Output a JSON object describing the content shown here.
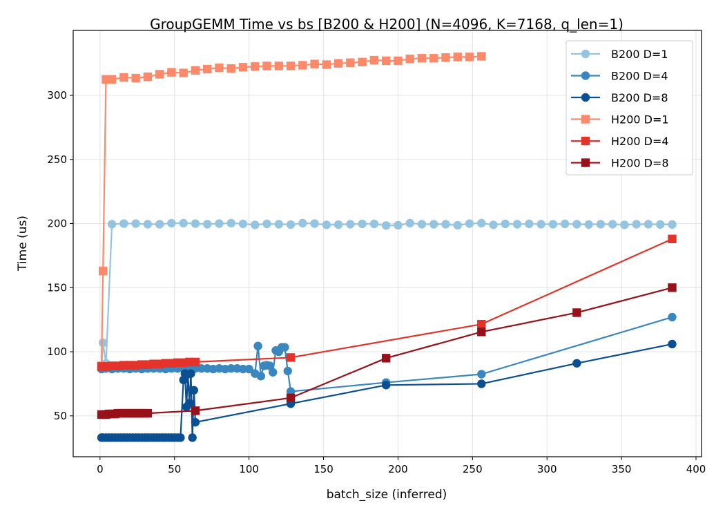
{
  "chart_data": {
    "type": "line",
    "title": "GroupGEMM Time vs bs [B200 & H200] (N=4096, K=7168, q_len=1)",
    "xlabel": "batch_size (inferred)",
    "ylabel": "Time (us)",
    "xlim": [
      -18,
      403.7
    ],
    "ylim": [
      18.1,
      350.7
    ],
    "xticks": [
      0,
      50,
      100,
      150,
      200,
      250,
      300,
      350,
      400
    ],
    "yticks": [
      50,
      100,
      150,
      200,
      250,
      300
    ],
    "grid": true,
    "legend_position": "top-right",
    "series": [
      {
        "name": "B200 D=1",
        "color": "#94c4df",
        "marker": "circle",
        "x": [
          1,
          2,
          4,
          8,
          16,
          24,
          32,
          40,
          48,
          56,
          64,
          72,
          80,
          88,
          96,
          104,
          112,
          120,
          128,
          136,
          144,
          152,
          160,
          168,
          176,
          184,
          192,
          200,
          208,
          216,
          224,
          232,
          240,
          248,
          256,
          264,
          272,
          280,
          288,
          296,
          304,
          312,
          320,
          328,
          336,
          344,
          352,
          360,
          368,
          376,
          384
        ],
        "y": [
          87,
          107,
          91,
          199.5,
          200,
          200,
          199.5,
          199.5,
          200.3,
          200.3,
          200,
          199.5,
          200,
          200.3,
          199.8,
          199,
          199.8,
          199.5,
          199.2,
          200.3,
          200,
          199,
          199.2,
          199.5,
          199.8,
          199.8,
          198.5,
          198.7,
          200.3,
          199.5,
          199.5,
          199.5,
          198.7,
          200,
          200.3,
          199,
          199.8,
          199.5,
          199.8,
          199.5,
          199.5,
          199.8,
          199.5,
          199.3,
          199.5,
          199.5,
          199,
          199.5,
          199.5,
          199.3,
          199.3
        ]
      },
      {
        "name": "B200 D=4",
        "color": "#3a87c0",
        "marker": "circle",
        "x": [
          1,
          4,
          8,
          12,
          16,
          20,
          24,
          28,
          32,
          36,
          40,
          44,
          48,
          52,
          56,
          60,
          64,
          68,
          72,
          76,
          80,
          84,
          88,
          92,
          96,
          100,
          104,
          106,
          108,
          110,
          112,
          114,
          116,
          118,
          120,
          122,
          124,
          126,
          128,
          192,
          256,
          384
        ],
        "y": [
          86.5,
          87,
          86.5,
          87,
          87,
          86.5,
          87,
          86.5,
          87,
          87,
          87,
          86.5,
          87,
          87,
          87,
          86.5,
          87,
          87,
          87,
          86.5,
          87,
          86.5,
          87,
          87,
          86.5,
          86.5,
          83,
          104.5,
          81,
          89,
          89.5,
          89,
          84,
          101,
          100,
          103.5,
          103.5,
          85,
          69,
          76,
          82.5,
          127
        ]
      },
      {
        "name": "B200 D=8",
        "color": "#0b4f93",
        "marker": "circle",
        "x": [
          1,
          2,
          4,
          6,
          8,
          10,
          12,
          14,
          16,
          18,
          20,
          22,
          24,
          26,
          28,
          30,
          32,
          34,
          36,
          38,
          40,
          42,
          44,
          46,
          48,
          50,
          52,
          54,
          56,
          57,
          58,
          59,
          60,
          61,
          62,
          63,
          64,
          128,
          192,
          256,
          320,
          384
        ],
        "y": [
          33,
          33,
          33,
          33,
          33,
          33,
          33,
          33,
          33,
          33,
          33,
          33,
          33,
          33,
          33,
          33,
          33,
          33,
          33,
          33,
          33,
          33,
          33,
          33,
          33,
          33,
          33,
          33,
          78,
          83,
          57,
          82.5,
          60,
          83,
          33,
          70,
          45,
          59.5,
          74,
          75,
          91,
          106
        ]
      },
      {
        "name": "H200 D=1",
        "color": "#fc8a6a",
        "marker": "square",
        "x": [
          1,
          2,
          4,
          8,
          16,
          24,
          32,
          40,
          48,
          56,
          64,
          72,
          80,
          88,
          96,
          104,
          112,
          120,
          128,
          136,
          144,
          152,
          160,
          168,
          176,
          184,
          192,
          200,
          208,
          216,
          224,
          232,
          240,
          248,
          256
        ],
        "y": [
          89,
          163,
          312.5,
          312.5,
          314,
          313.5,
          314.5,
          316.5,
          318,
          317.5,
          319.5,
          320.5,
          321.5,
          321,
          322,
          322.5,
          323,
          323,
          323,
          323.5,
          324.5,
          324,
          325,
          325.5,
          326,
          327.5,
          327,
          327,
          328.5,
          329,
          329,
          329.5,
          330,
          330,
          330.5
        ]
      },
      {
        "name": "H200 D=4",
        "color": "#e3332a",
        "marker": "square",
        "x": [
          1,
          2,
          4,
          8,
          12,
          16,
          20,
          24,
          28,
          32,
          36,
          40,
          44,
          48,
          52,
          56,
          60,
          64,
          128,
          256,
          384
        ],
        "y": [
          88.5,
          88.5,
          88.5,
          89,
          89,
          89.5,
          89.5,
          89.5,
          90,
          90,
          90.5,
          90.5,
          91,
          91,
          91.5,
          91.5,
          92,
          92,
          95.5,
          121.5,
          188
        ]
      },
      {
        "name": "H200 D=8",
        "color": "#981018",
        "marker": "square",
        "x": [
          1,
          2,
          4,
          6,
          8,
          10,
          12,
          14,
          16,
          18,
          20,
          22,
          24,
          26,
          28,
          30,
          32,
          64,
          128,
          192,
          256,
          320,
          384
        ],
        "y": [
          51,
          51,
          51,
          51.5,
          51.5,
          51.5,
          52,
          52,
          52,
          52,
          52,
          52,
          52,
          52,
          52,
          52,
          52,
          54,
          64,
          95,
          115.5,
          130.5,
          150
        ]
      }
    ]
  }
}
